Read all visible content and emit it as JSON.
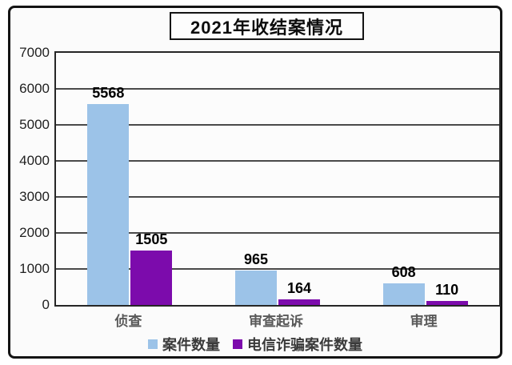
{
  "title": "2021年收结案情况",
  "chart_data": {
    "type": "bar",
    "title": "2021年收结案情况",
    "categories": [
      "侦查",
      "审查起诉",
      "审理"
    ],
    "series": [
      {
        "name": "案件数量",
        "color": "#9CC3E8",
        "values": [
          5568,
          965,
          608
        ]
      },
      {
        "name": "电信诈骗案件数量",
        "color": "#7C0BAC",
        "values": [
          1505,
          164,
          110
        ]
      }
    ],
    "xlabel": "",
    "ylabel": "",
    "ylim": [
      0,
      7000
    ],
    "ytick_step": 1000,
    "ytick_labels": [
      "0",
      "1000",
      "2000",
      "3000",
      "4000",
      "5000",
      "6000",
      "7000"
    ],
    "data_labels": [
      [
        "5568",
        "965",
        "608"
      ],
      [
        "1505",
        "164",
        "110"
      ]
    ],
    "grid": true,
    "legend_position": "bottom"
  },
  "colors": {
    "series_blue": "#9CC3E8",
    "series_purple": "#7C0BAC",
    "gridline": "#4a4a4a",
    "frame_border": "#141414",
    "category_label": "#595959"
  }
}
